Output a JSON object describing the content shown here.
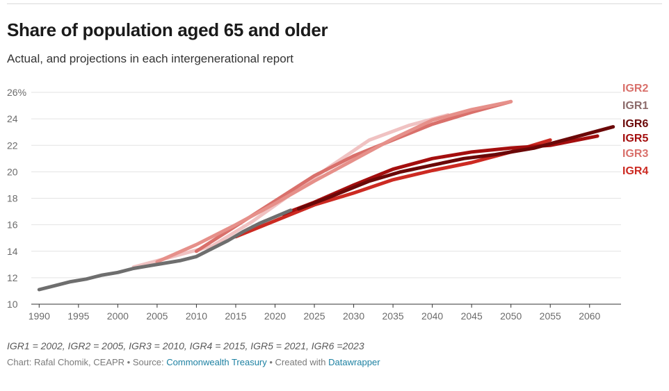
{
  "title": "Share of population aged 65 and older",
  "subtitle": "Actual, and projections in each intergenerational report",
  "note": "IGR1 = 2002, IGR2 = 2005, IGR3 = 2010, IGR4 = 2015, IGR5 = 2021, IGR6 =2023",
  "footer": {
    "prefix": "Chart: Rafal Chomik, CEAPR • Source: ",
    "source": "Commonwealth Treasury",
    "middle": " • Created with ",
    "tool": "Datawrapper"
  },
  "colors": {
    "actual": "#6e6e6e",
    "IGR1": "#f0c2c2",
    "IGR2": "#e6908a",
    "IGR3": "#d9706b",
    "IGR4": "#cc2a22",
    "IGR5": "#a40e0e",
    "IGR6": "#6b0808"
  },
  "chart_data": {
    "type": "line",
    "title": "Share of population aged 65 and older",
    "subtitle": "Actual, and projections in each intergenerational report",
    "xlabel": "",
    "ylabel": "",
    "xlim": [
      1989,
      2064
    ],
    "ylim": [
      10,
      26
    ],
    "x_ticks": [
      1990,
      1995,
      2000,
      2005,
      2010,
      2015,
      2020,
      2025,
      2030,
      2035,
      2040,
      2045,
      2050,
      2055,
      2060
    ],
    "y_ticks": [
      10,
      12,
      14,
      16,
      18,
      20,
      22,
      24,
      26
    ],
    "y_tick_labels": [
      "10",
      "12",
      "14",
      "16",
      "18",
      "20",
      "22",
      "24",
      "26%"
    ],
    "grid": true,
    "legend": "direct labels at right",
    "series": [
      {
        "name": "IGR1",
        "label_color": "#8c6b6b",
        "x": [
          2002,
          2007,
          2012,
          2017,
          2022,
          2027,
          2032,
          2037,
          2042
        ],
        "y": [
          12.8,
          13.6,
          14.4,
          16.2,
          18.3,
          20.4,
          22.4,
          23.5,
          24.3
        ]
      },
      {
        "name": "IGR3",
        "x": [
          2010,
          2015,
          2020,
          2025,
          2030,
          2035,
          2040,
          2045,
          2050
        ],
        "y": [
          14.0,
          15.9,
          17.8,
          19.7,
          21.2,
          22.4,
          23.6,
          24.5,
          25.3
        ]
      },
      {
        "name": "IGR2",
        "x": [
          2005,
          2010,
          2015,
          2020,
          2025,
          2030,
          2035,
          2040,
          2045,
          2050
        ],
        "y": [
          13.2,
          14.5,
          16.0,
          17.6,
          19.3,
          20.9,
          22.5,
          23.9,
          24.7,
          25.3
        ]
      },
      {
        "name": "IGR4",
        "x": [
          2015,
          2020,
          2025,
          2030,
          2035,
          2040,
          2045,
          2050,
          2055
        ],
        "y": [
          15.1,
          16.3,
          17.5,
          18.4,
          19.4,
          20.1,
          20.7,
          21.5,
          22.4
        ]
      },
      {
        "name": "IGR5",
        "x": [
          2021,
          2025,
          2030,
          2035,
          2040,
          2045,
          2050,
          2055,
          2061
        ],
        "y": [
          16.8,
          17.7,
          19.0,
          20.2,
          21.0,
          21.5,
          21.8,
          22.0,
          22.7
        ]
      },
      {
        "name": "IGR6",
        "x": [
          2023,
          2027,
          2032,
          2036,
          2040,
          2044,
          2048,
          2053,
          2058,
          2063
        ],
        "y": [
          17.2,
          18.1,
          19.3,
          20.0,
          20.5,
          21.0,
          21.3,
          21.8,
          22.6,
          23.4
        ]
      },
      {
        "name": "Actual",
        "x": [
          1990,
          1992,
          1994,
          1996,
          1998,
          2000,
          2002,
          2004,
          2006,
          2008,
          2010,
          2012,
          2014,
          2016,
          2018,
          2020,
          2022
        ],
        "y": [
          11.1,
          11.4,
          11.7,
          11.9,
          12.2,
          12.4,
          12.7,
          12.9,
          13.1,
          13.3,
          13.6,
          14.2,
          14.8,
          15.5,
          16.1,
          16.6,
          17.1
        ]
      }
    ],
    "labels": [
      "IGR2",
      "IGR1",
      "IGR6",
      "IGR5",
      "IGR3",
      "IGR4"
    ]
  }
}
